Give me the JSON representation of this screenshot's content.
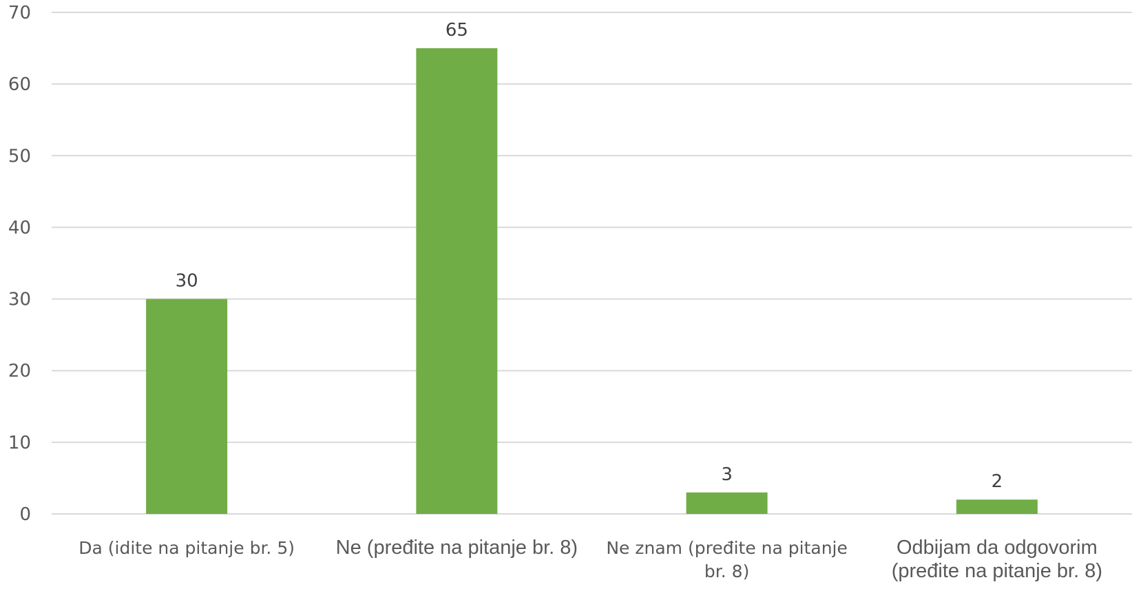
{
  "chart_data": {
    "type": "bar",
    "title": "",
    "xlabel": "",
    "ylabel": "",
    "categories": [
      "Da (idite na pitanje br. 5)",
      "Ne (pređite na pitanje br. 8)",
      "Ne znam (pređite na pitanje br. 8)",
      "Odbijam da odgovorim (pređite na pitanje br. 8)"
    ],
    "values": [
      30,
      65,
      3,
      2
    ],
    "ylim": [
      0,
      70
    ],
    "yticks": [
      0,
      10,
      20,
      30,
      40,
      50,
      60,
      70
    ],
    "grid": true,
    "legend": "none",
    "bar_color": "#70AD47",
    "grid_color": "#D9D9D9"
  }
}
